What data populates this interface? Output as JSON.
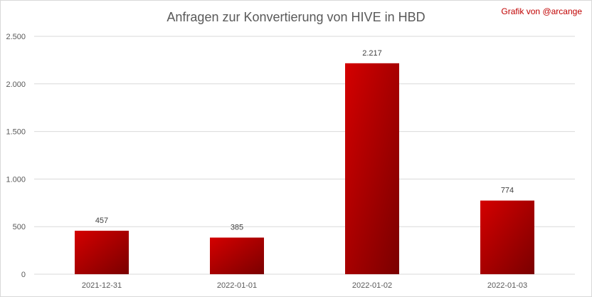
{
  "header": {
    "title": "Anfragen zur Konvertierung von HIVE in HBD",
    "credit": "Grafik von @arcange"
  },
  "chart_data": {
    "type": "bar",
    "title": "Anfragen zur Konvertierung von HIVE in HBD",
    "xlabel": "",
    "ylabel": "",
    "categories": [
      "2021-12-31",
      "2022-01-01",
      "2022-01-02",
      "2022-01-03"
    ],
    "values": [
      457,
      385,
      2217,
      774
    ],
    "value_labels": [
      "457",
      "385",
      "2.217",
      "774"
    ],
    "ylim": [
      0,
      2500
    ],
    "yticks": [
      0,
      500,
      1000,
      1500,
      2000,
      2500
    ],
    "ytick_labels": [
      "0",
      "500",
      "1.000",
      "1.500",
      "2.000",
      "2.500"
    ],
    "grid": true,
    "bar_colors": [
      "#d40000",
      "#7a0000"
    ],
    "gridline_color": "#d9d9d9"
  }
}
